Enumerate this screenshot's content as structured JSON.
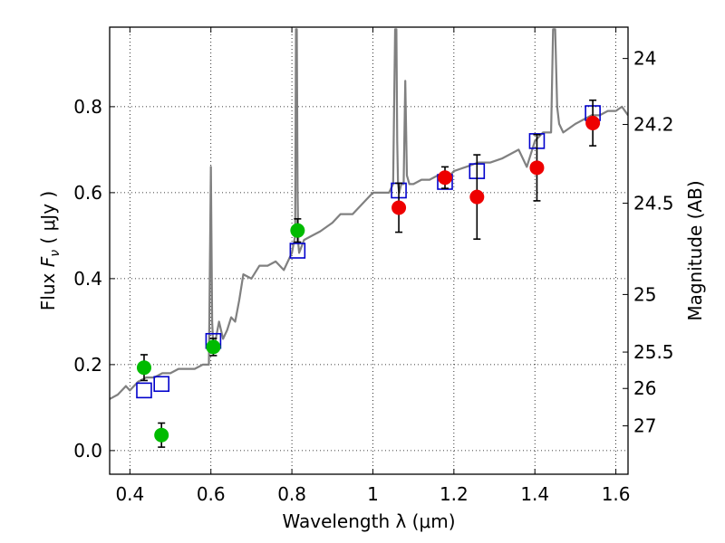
{
  "chart_data": {
    "type": "scatter",
    "xlabel": "Wavelength  λ (μm)",
    "ylabel_prefix": "Flux  ",
    "ylabel_symbol": "F",
    "ylabel_sub": "ν",
    "ylabel_unit": "  ( μJy )",
    "y2label": "Magnitude (AB)",
    "xlim": [
      0.35,
      1.63
    ],
    "ylim": [
      -0.055,
      0.985
    ],
    "grid": true,
    "xticks": [
      0.4,
      0.6,
      0.8,
      1.0,
      1.2,
      1.4,
      1.6
    ],
    "xtick_labels": [
      "0.4",
      "0.6",
      "0.8",
      "1",
      "1.2",
      "1.4",
      "1.6"
    ],
    "yticks": [
      0.0,
      0.2,
      0.4,
      0.6,
      0.8
    ],
    "ytick_labels": [
      "0.0",
      "0.2",
      "0.4",
      "0.6",
      "0.8"
    ],
    "y2ticks": [
      {
        "label": "24",
        "flux": 0.9121
      },
      {
        "label": "24.2",
        "flux": 0.7586
      },
      {
        "label": "24.5",
        "flux": 0.5754
      },
      {
        "label": "25",
        "flux": 0.3631
      },
      {
        "label": "25.5",
        "flux": 0.2291
      },
      {
        "label": "26",
        "flux": 0.1445
      },
      {
        "label": "27",
        "flux": 0.0575
      }
    ],
    "series": [
      {
        "name": "template spectrum",
        "kind": "line",
        "color": "#808080",
        "x": [
          0.35,
          0.37,
          0.39,
          0.4,
          0.42,
          0.44,
          0.46,
          0.48,
          0.5,
          0.52,
          0.54,
          0.56,
          0.58,
          0.595,
          0.6,
          0.603,
          0.606,
          0.61,
          0.62,
          0.63,
          0.64,
          0.65,
          0.66,
          0.67,
          0.68,
          0.7,
          0.72,
          0.74,
          0.76,
          0.78,
          0.8,
          0.808,
          0.81,
          0.812,
          0.814,
          0.816,
          0.818,
          0.822,
          0.83,
          0.85,
          0.87,
          0.9,
          0.92,
          0.95,
          0.98,
          1.0,
          1.02,
          1.04,
          1.05,
          1.055,
          1.058,
          1.06,
          1.062,
          1.065,
          1.07,
          1.076,
          1.08,
          1.084,
          1.09,
          1.1,
          1.12,
          1.14,
          1.16,
          1.18,
          1.2,
          1.23,
          1.26,
          1.29,
          1.32,
          1.34,
          1.36,
          1.38,
          1.4,
          1.42,
          1.44,
          1.445,
          1.45,
          1.455,
          1.46,
          1.47,
          1.5,
          1.52,
          1.54,
          1.56,
          1.58,
          1.6,
          1.615,
          1.63
        ],
        "y": [
          0.12,
          0.13,
          0.15,
          0.14,
          0.16,
          0.17,
          0.17,
          0.18,
          0.18,
          0.19,
          0.19,
          0.19,
          0.2,
          0.2,
          0.66,
          0.3,
          0.24,
          0.25,
          0.3,
          0.26,
          0.28,
          0.31,
          0.3,
          0.35,
          0.41,
          0.4,
          0.43,
          0.43,
          0.44,
          0.42,
          0.46,
          0.5,
          0.98,
          0.98,
          0.6,
          0.48,
          0.46,
          0.47,
          0.49,
          0.5,
          0.51,
          0.53,
          0.55,
          0.55,
          0.58,
          0.6,
          0.6,
          0.6,
          0.62,
          0.98,
          0.98,
          0.72,
          0.62,
          0.6,
          0.62,
          0.62,
          0.86,
          0.64,
          0.62,
          0.62,
          0.63,
          0.63,
          0.64,
          0.63,
          0.65,
          0.66,
          0.67,
          0.67,
          0.68,
          0.69,
          0.7,
          0.66,
          0.72,
          0.74,
          0.74,
          0.98,
          0.98,
          0.8,
          0.76,
          0.74,
          0.76,
          0.77,
          0.78,
          0.78,
          0.79,
          0.79,
          0.8,
          0.78
        ]
      },
      {
        "name": "model photometry",
        "kind": "marker",
        "marker": "square",
        "color": "#0000cc",
        "x": [
          0.435,
          0.478,
          0.606,
          0.814,
          1.064,
          1.178,
          1.257,
          1.405,
          1.543
        ],
        "y": [
          0.14,
          0.155,
          0.255,
          0.465,
          0.605,
          0.625,
          0.65,
          0.72,
          0.785
        ]
      },
      {
        "name": "measured flux (green)",
        "kind": "errorbar",
        "marker": "circle",
        "color": "#00bb00",
        "x": [
          0.435,
          0.478,
          0.606,
          0.814
        ],
        "y": [
          0.193,
          0.036,
          0.241,
          0.512
        ],
        "err": [
          0.03,
          0.028,
          0.02,
          0.027
        ]
      },
      {
        "name": "measured flux (red)",
        "kind": "errorbar",
        "marker": "circle",
        "color": "#ee0000",
        "x": [
          1.064,
          1.178,
          1.257,
          1.405,
          1.543
        ],
        "y": [
          0.565,
          0.635,
          0.59,
          0.658,
          0.762
        ],
        "err": [
          0.057,
          0.025,
          0.098,
          0.077,
          0.053
        ]
      }
    ]
  }
}
